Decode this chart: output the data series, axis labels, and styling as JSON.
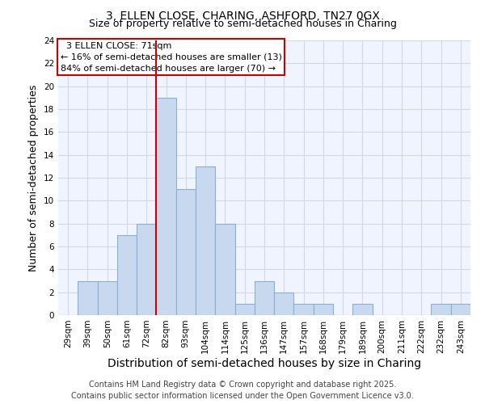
{
  "title": "3, ELLEN CLOSE, CHARING, ASHFORD, TN27 0GX",
  "subtitle": "Size of property relative to semi-detached houses in Charing",
  "xlabel": "Distribution of semi-detached houses by size in Charing",
  "ylabel": "Number of semi-detached properties",
  "categories": [
    "29sqm",
    "39sqm",
    "50sqm",
    "61sqm",
    "72sqm",
    "82sqm",
    "93sqm",
    "104sqm",
    "114sqm",
    "125sqm",
    "136sqm",
    "147sqm",
    "157sqm",
    "168sqm",
    "179sqm",
    "189sqm",
    "200sqm",
    "211sqm",
    "222sqm",
    "232sqm",
    "243sqm"
  ],
  "values": [
    0,
    3,
    3,
    7,
    8,
    19,
    11,
    13,
    8,
    1,
    3,
    2,
    1,
    1,
    0,
    1,
    0,
    0,
    0,
    1,
    1
  ],
  "bar_color": "#c8d8ef",
  "bar_edge_color": "#8aafd4",
  "ylim": [
    0,
    24
  ],
  "yticks": [
    0,
    2,
    4,
    6,
    8,
    10,
    12,
    14,
    16,
    18,
    20,
    22,
    24
  ],
  "property_label": "3 ELLEN CLOSE: 71sqm",
  "annotation_line1": "← 16% of semi-detached houses are smaller (13)",
  "annotation_line2": "84% of semi-detached houses are larger (70) →",
  "vline_position": 4.5,
  "annotation_box_color": "#ffffff",
  "annotation_box_edge": "#cc0000",
  "vline_color": "#cc0000",
  "footer_line1": "Contains HM Land Registry data © Crown copyright and database right 2025.",
  "footer_line2": "Contains public sector information licensed under the Open Government Licence v3.0.",
  "bg_color": "#ffffff",
  "plot_bg_color": "#f0f4ff",
  "grid_color": "#d0d8e8",
  "title_fontsize": 10,
  "subtitle_fontsize": 9,
  "axis_label_fontsize": 9,
  "tick_fontsize": 7.5,
  "footer_fontsize": 7,
  "annotation_fontsize": 8
}
